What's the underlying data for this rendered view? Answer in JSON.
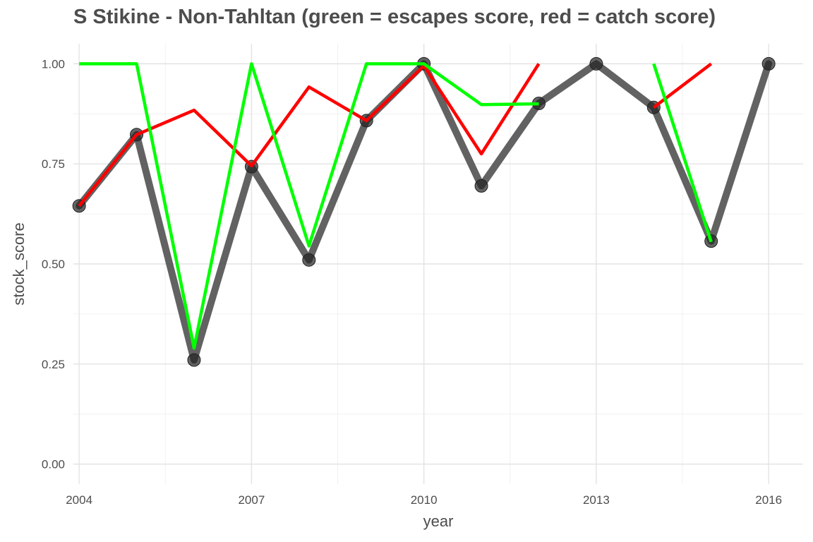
{
  "chart_data": {
    "type": "line",
    "title": "S Stikine - Non-Tahltan (green = escapes score, red = catch score)",
    "xlabel": "year",
    "ylabel": "stock_score",
    "xlim": [
      2003.9,
      2016.6
    ],
    "ylim": [
      -0.05,
      1.05
    ],
    "x_ticks": [
      2004,
      2007,
      2010,
      2013,
      2016
    ],
    "y_ticks": [
      0.0,
      0.25,
      0.5,
      0.75,
      1.0
    ],
    "y_tick_labels": [
      "0.00",
      "0.25",
      "0.50",
      "0.75",
      "1.00"
    ],
    "grid": true,
    "legend": "none",
    "series": [
      {
        "role": "stock score",
        "color": "#555555",
        "style": "thick line with points",
        "x": [
          2004,
          2005,
          2006,
          2007,
          2008,
          2009,
          2010,
          2011,
          2012,
          2013,
          2014,
          2015,
          2016
        ],
        "y": [
          0.645,
          0.823,
          0.26,
          0.743,
          0.51,
          0.858,
          1.0,
          0.695,
          0.901,
          1.0,
          0.891,
          0.557,
          1.0
        ]
      },
      {
        "role": "catch score",
        "color": "#ff0000",
        "segments": [
          {
            "x": [
              2004,
              2005,
              2006,
              2007,
              2008,
              2009,
              2010,
              2011,
              2012
            ],
            "y": [
              0.645,
              0.823,
              0.884,
              0.745,
              0.942,
              0.858,
              0.995,
              0.775,
              1.0
            ]
          },
          {
            "x": [
              2014,
              2015
            ],
            "y": [
              0.891,
              1.0
            ]
          }
        ]
      },
      {
        "role": "escapes score",
        "color": "#00ff00",
        "segments": [
          {
            "x": [
              2004,
              2005,
              2006,
              2007,
              2008,
              2009,
              2010,
              2011,
              2012
            ],
            "y": [
              1.0,
              1.0,
              0.29,
              1.0,
              0.545,
              1.0,
              1.0,
              0.898,
              0.9
            ]
          },
          {
            "x": [
              2014,
              2015
            ],
            "y": [
              1.0,
              0.555
            ]
          }
        ]
      }
    ]
  }
}
